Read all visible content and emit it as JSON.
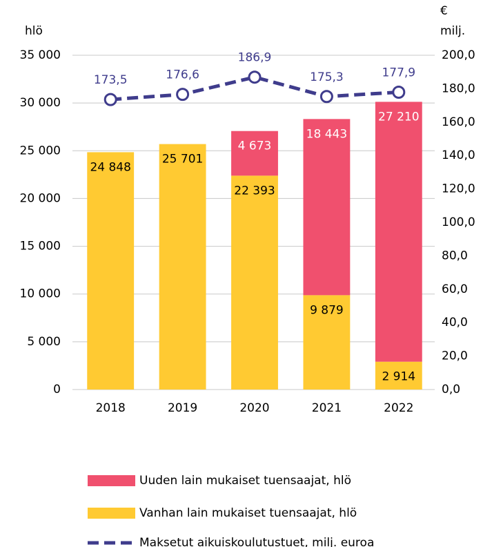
{
  "chart_data": {
    "type": "bar",
    "y_label": "hlö",
    "y2_label": [
      "€",
      "milj."
    ],
    "categories": [
      "2018",
      "2019",
      "2020",
      "2021",
      "2022"
    ],
    "series": [
      {
        "name": "Vanhan lain mukaiset tuensaajat, hlö",
        "color": "#ffca32",
        "values": [
          24848,
          25701,
          22393,
          9879,
          2914
        ],
        "value_labels": [
          "24 848",
          "25 701",
          "22 393",
          "9 879",
          "2 914"
        ]
      },
      {
        "name": "Uuden lain mukaiset tuensaajat, hlö",
        "color": "#f0506e",
        "values": [
          null,
          null,
          4673,
          18443,
          27210
        ],
        "value_labels": [
          null,
          null,
          "4 673",
          "18 443",
          "27 210"
        ]
      },
      {
        "name": "Maksetut aikuiskoulutustuet, milj. euroa",
        "color": "#3f3c8c",
        "axis": "y2",
        "values": [
          173.5,
          176.6,
          186.9,
          175.3,
          177.9
        ],
        "value_labels": [
          "173,5",
          "176,6",
          "186,9",
          "175,3",
          "177,9"
        ]
      }
    ],
    "stacked": true,
    "grid": true,
    "ylim": [
      0,
      35000
    ],
    "yticks": [
      0,
      {
        "value": 5000,
        "label": "5 000"
      },
      {
        "value": 10000,
        "label": "10 000"
      },
      {
        "value": 15000,
        "label": "15 000"
      },
      {
        "value": 20000,
        "label": "20 000"
      },
      {
        "value": 25000,
        "label": "25 000"
      },
      {
        "value": 30000,
        "label": "30 000"
      },
      {
        "value": 35000,
        "label": "35 000"
      }
    ],
    "y2lim": [
      0,
      200
    ],
    "y2ticks": [
      {
        "value": 0,
        "label": "0,0"
      },
      {
        "value": 20,
        "label": "20,0"
      },
      {
        "value": 40,
        "label": "40,0"
      },
      {
        "value": 60,
        "label": "60,0"
      },
      {
        "value": 80,
        "label": "80,0"
      },
      {
        "value": 100,
        "label": "100,0"
      },
      {
        "value": 120,
        "label": "120,0"
      },
      {
        "value": 140,
        "label": "140,0"
      },
      {
        "value": 160,
        "label": "160,0"
      },
      {
        "value": 180,
        "label": "180,0"
      },
      {
        "value": 200,
        "label": "200,0"
      }
    ]
  }
}
